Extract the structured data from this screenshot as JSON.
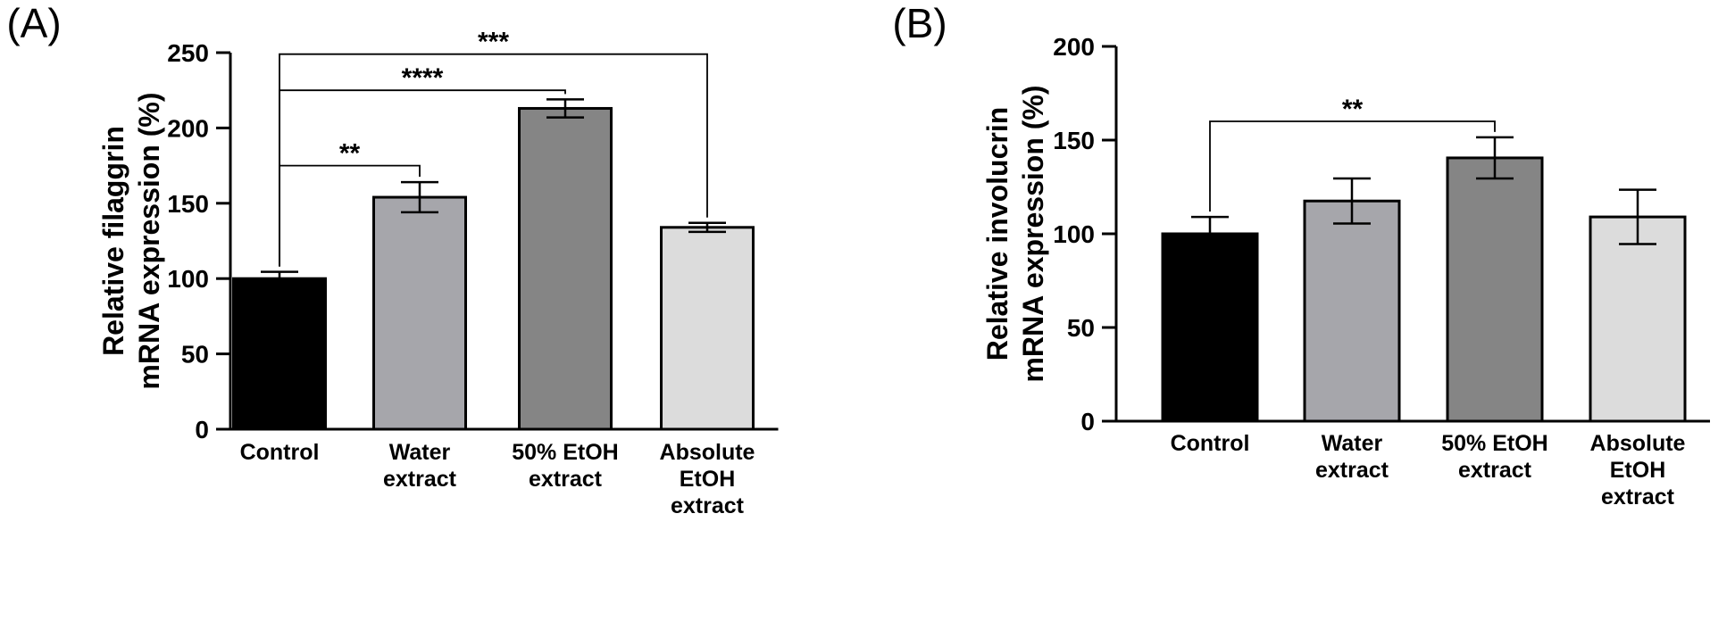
{
  "chart_data": [
    {
      "panel_label": "(A)",
      "type": "bar",
      "categories": [
        [
          "Control"
        ],
        [
          "Water",
          "extract"
        ],
        [
          "50% EtOH",
          "extract"
        ],
        [
          "Absolute",
          "EtOH",
          "extract"
        ]
      ],
      "values": [
        100,
        154,
        213,
        134
      ],
      "errors": [
        4.5,
        10,
        6,
        3
      ],
      "colors": [
        "#000000",
        "#a6a6ab",
        "#858585",
        "#dcdcdc"
      ],
      "ylabel": [
        "Relative filaggrin",
        "mRNA expression (%)"
      ],
      "ylim": [
        0,
        250
      ],
      "yticks": [
        0,
        50,
        100,
        150,
        200,
        250
      ],
      "significance": [
        {
          "from": 0,
          "to": 1,
          "label": "**",
          "level": 175
        },
        {
          "from": 0,
          "to": 2,
          "label": "****",
          "level": 225
        },
        {
          "from": 0,
          "to": 3,
          "label": "***",
          "level": 249
        }
      ]
    },
    {
      "panel_label": "(B)",
      "type": "bar",
      "categories": [
        [
          "Control"
        ],
        [
          "Water",
          "extract"
        ],
        [
          "50% EtOH",
          "extract"
        ],
        [
          "Absolute",
          "EtOH",
          "extract"
        ]
      ],
      "values": [
        100,
        117.5,
        140.5,
        109
      ],
      "errors": [
        9,
        12,
        11,
        14.5
      ],
      "colors": [
        "#000000",
        "#a6a6ab",
        "#858585",
        "#dcdcdc"
      ],
      "ylabel": [
        "Relative involucrin",
        "mRNA expression (%)"
      ],
      "ylim": [
        0,
        200
      ],
      "yticks": [
        0,
        50,
        100,
        150,
        200
      ],
      "significance": [
        {
          "from": 0,
          "to": 2,
          "label": "**",
          "level": 160
        }
      ]
    }
  ]
}
